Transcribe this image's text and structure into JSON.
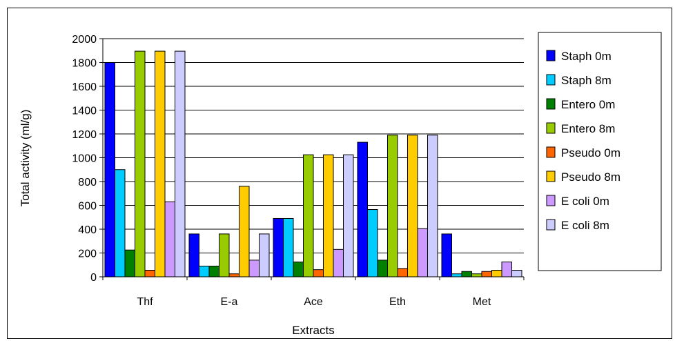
{
  "chart_data": {
    "type": "bar",
    "title": "",
    "xlabel": "Extracts",
    "ylabel": "Total activity (ml/g)",
    "ylim": [
      0,
      2000
    ],
    "yticks": [
      "0",
      "200",
      "400",
      "600",
      "800",
      "1000",
      "1200",
      "1400",
      "1600",
      "1800",
      "2000"
    ],
    "categories": [
      "Thf",
      "E-a",
      "Ace",
      "Eth",
      "Met"
    ],
    "grid": true,
    "legend_position": "right",
    "series": [
      {
        "name": "Staph 0m",
        "color": "#0000ff",
        "values": [
          1800,
          360,
          490,
          1130,
          360
        ]
      },
      {
        "name": "Staph 8m",
        "color": "#00ccff",
        "values": [
          900,
          90,
          490,
          565,
          25
        ]
      },
      {
        "name": "Entero 0m",
        "color": "#008000",
        "values": [
          225,
          90,
          125,
          140,
          45
        ]
      },
      {
        "name": "Entero 8m",
        "color": "#99cc00",
        "values": [
          1895,
          360,
          1025,
          1190,
          25
        ]
      },
      {
        "name": "Pseudo 0m",
        "color": "#ff6600",
        "values": [
          55,
          25,
          60,
          70,
          45
        ]
      },
      {
        "name": "Pseudo 8m",
        "color": "#ffcc00",
        "values": [
          1895,
          760,
          1025,
          1190,
          55
        ]
      },
      {
        "name": "E coli 0m",
        "color": "#cc99ff",
        "values": [
          630,
          140,
          230,
          405,
          125
        ]
      },
      {
        "name": "E coli 8m",
        "color": "#ccccff",
        "values": [
          1895,
          360,
          1025,
          1190,
          55
        ]
      }
    ]
  }
}
